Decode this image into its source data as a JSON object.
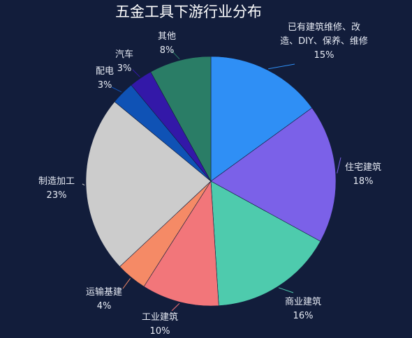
{
  "chart_data": {
    "type": "pie",
    "title": "五金工具下游行业分布",
    "slices": [
      {
        "label_lines": [
          "已有建筑维修、改",
          "造、DIY、保养、维修"
        ],
        "percent_text": "15%",
        "value": 15,
        "color": "#2f8ff5"
      },
      {
        "label_lines": [
          "住宅建筑"
        ],
        "percent_text": "18%",
        "value": 18,
        "color": "#7b61e8"
      },
      {
        "label_lines": [
          "商业建筑"
        ],
        "percent_text": "16%",
        "value": 16,
        "color": "#4ecbad"
      },
      {
        "label_lines": [
          "工业建筑"
        ],
        "percent_text": "10%",
        "value": 10,
        "color": "#f2767a"
      },
      {
        "label_lines": [
          "运输基建"
        ],
        "percent_text": "4%",
        "value": 4,
        "color": "#f58a66"
      },
      {
        "label_lines": [
          "制造加工"
        ],
        "percent_text": "23%",
        "value": 23,
        "color": "#cccccc"
      },
      {
        "label_lines": [
          "配电"
        ],
        "percent_text": "3%",
        "value": 3,
        "color": "#0f52b5"
      },
      {
        "label_lines": [
          "汽车"
        ],
        "percent_text": "3%",
        "value": 3,
        "color": "#3318a8"
      },
      {
        "label_lines": [
          "其他"
        ],
        "percent_text": "8%",
        "value": 8,
        "color": "#2a7d66"
      }
    ],
    "legend": "none"
  }
}
